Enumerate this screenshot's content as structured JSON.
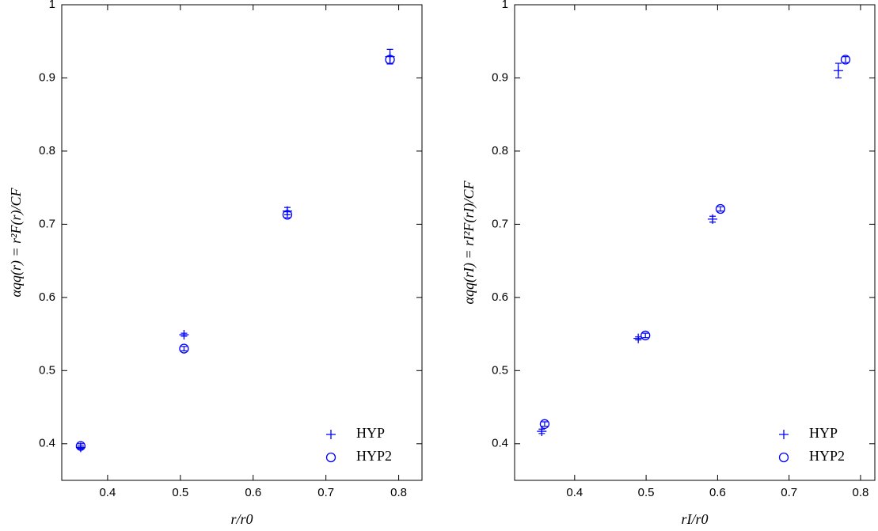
{
  "chart_data": [
    {
      "type": "scatter",
      "x_label": "r/r0",
      "y_label": "αqq(r) = r²F(r)/CF",
      "xlim": [
        0.337,
        0.832
      ],
      "ylim": [
        0.35,
        1
      ],
      "xticks": [
        0.4,
        0.5,
        0.6,
        0.7,
        0.8
      ],
      "yticks": [
        0.4,
        0.5,
        0.6,
        0.7,
        0.8,
        0.9,
        1
      ],
      "legend": "lower right",
      "series": [
        {
          "name": "HYP",
          "color": "#0000ff",
          "marker": "+",
          "x": [
            0.363,
            0.505,
            0.647,
            0.788
          ],
          "values": [
            0.395,
            0.549,
            0.718,
            0.929
          ],
          "errors": [
            0.002,
            0.002,
            0.005,
            0.01
          ]
        },
        {
          "name": "HYP2",
          "color": "#0000ff",
          "marker": "o",
          "x": [
            0.363,
            0.505,
            0.647,
            0.788
          ],
          "values": [
            0.397,
            0.53,
            0.713,
            0.925
          ],
          "errors": [
            0.003,
            0.003,
            0.004,
            0.005
          ]
        }
      ]
    },
    {
      "type": "scatter",
      "x_label": "rI/r0",
      "y_label": "αqq(rI) = rI²F(rI)/CF",
      "xlim": [
        0.316,
        0.82
      ],
      "ylim": [
        0.35,
        1
      ],
      "xticks": [
        0.4,
        0.5,
        0.6,
        0.7,
        0.8
      ],
      "yticks": [
        0.4,
        0.5,
        0.6,
        0.7,
        0.8,
        0.9,
        1
      ],
      "legend": "lower right",
      "series": [
        {
          "name": "HYP",
          "color": "#0000ff",
          "marker": "+",
          "x": [
            0.354,
            0.489,
            0.593,
            0.769
          ],
          "values": [
            0.417,
            0.544,
            0.707,
            0.91
          ],
          "errors": [
            0.003,
            0.002,
            0.004,
            0.01
          ]
        },
        {
          "name": "HYP2",
          "color": "#0000ff",
          "marker": "o",
          "x": [
            0.358,
            0.499,
            0.604,
            0.779
          ],
          "values": [
            0.427,
            0.548,
            0.721,
            0.925
          ],
          "errors": [
            0.003,
            0.003,
            0.003,
            0.004
          ]
        }
      ]
    }
  ]
}
